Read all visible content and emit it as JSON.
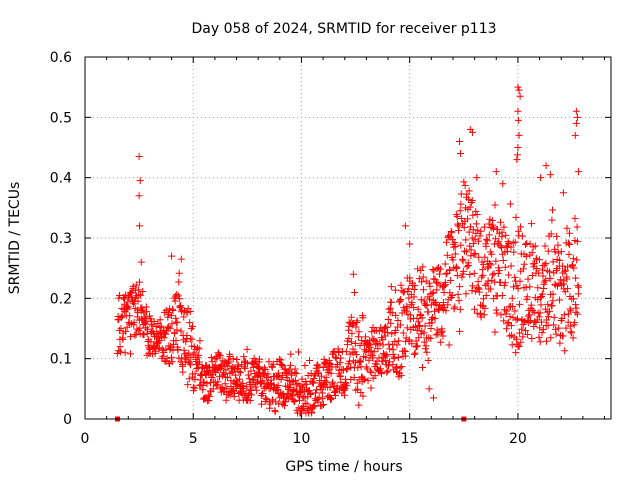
{
  "chart_data": {
    "type": "scatter",
    "title": "Day 058 of 2024, SRMTID for receiver p113",
    "xlabel": "GPS time / hours",
    "ylabel": "SRMTID / TECUs",
    "xlim": [
      0,
      24.3
    ],
    "ylim": [
      0,
      0.6
    ],
    "x_ticks": [
      0,
      5,
      10,
      15,
      20
    ],
    "x_tick_labels": [
      "0",
      "5",
      "10",
      "15",
      "20"
    ],
    "y_ticks": [
      0,
      0.1,
      0.2,
      0.3,
      0.4,
      0.5,
      0.6
    ],
    "y_tick_labels": [
      "0",
      "0.1",
      "0.2",
      "0.3",
      "0.4",
      "0.5",
      "0.6"
    ],
    "grid": true,
    "marker": "+",
    "color": "#ff0000",
    "series": [
      {
        "name": "SRMTID",
        "x_range": [
          1.5,
          22.8
        ],
        "envelope": {
          "x": [
            1.5,
            2.0,
            2.5,
            3.0,
            3.5,
            4.0,
            4.5,
            5.0,
            5.5,
            6.0,
            7.0,
            8.0,
            9.0,
            10.0,
            11.0,
            12.0,
            12.5,
            13.0,
            13.5,
            14.0,
            14.5,
            15.0,
            15.5,
            16.0,
            16.5,
            17.0,
            17.5,
            18.0,
            18.5,
            19.0,
            19.5,
            20.0,
            20.5,
            21.0,
            21.5,
            22.0,
            22.5,
            22.8
          ],
          "low": [
            0.08,
            0.09,
            0.09,
            0.1,
            0.1,
            0.09,
            0.07,
            0.04,
            0.03,
            0.03,
            0.02,
            0.02,
            0.01,
            0.01,
            0.01,
            0.02,
            0.02,
            0.02,
            0.06,
            0.08,
            0.07,
            0.08,
            0.08,
            0.09,
            0.1,
            0.12,
            0.13,
            0.18,
            0.16,
            0.14,
            0.12,
            0.12,
            0.12,
            0.11,
            0.12,
            0.11,
            0.12,
            0.14
          ],
          "high": [
            0.22,
            0.2,
            0.26,
            0.19,
            0.2,
            0.25,
            0.26,
            0.16,
            0.12,
            0.11,
            0.12,
            0.12,
            0.12,
            0.11,
            0.11,
            0.12,
            0.24,
            0.16,
            0.18,
            0.22,
            0.32,
            0.26,
            0.28,
            0.3,
            0.28,
            0.32,
            0.43,
            0.4,
            0.37,
            0.38,
            0.33,
            0.45,
            0.34,
            0.33,
            0.4,
            0.37,
            0.38,
            0.4
          ]
        },
        "spikes": [
          {
            "x": 2.5,
            "y": 0.435
          },
          {
            "x": 2.55,
            "y": 0.395
          },
          {
            "x": 2.5,
            "y": 0.37
          },
          {
            "x": 2.52,
            "y": 0.32
          },
          {
            "x": 2.6,
            "y": 0.26
          },
          {
            "x": 4.45,
            "y": 0.265
          },
          {
            "x": 4.0,
            "y": 0.27
          },
          {
            "x": 17.3,
            "y": 0.46
          },
          {
            "x": 17.35,
            "y": 0.44
          },
          {
            "x": 17.8,
            "y": 0.48
          },
          {
            "x": 17.9,
            "y": 0.475
          },
          {
            "x": 18.1,
            "y": 0.4
          },
          {
            "x": 19.0,
            "y": 0.41
          },
          {
            "x": 19.3,
            "y": 0.39
          },
          {
            "x": 20.0,
            "y": 0.55
          },
          {
            "x": 20.05,
            "y": 0.545
          },
          {
            "x": 20.1,
            "y": 0.535
          },
          {
            "x": 20.0,
            "y": 0.51
          },
          {
            "x": 20.02,
            "y": 0.495
          },
          {
            "x": 20.05,
            "y": 0.47
          },
          {
            "x": 20.0,
            "y": 0.45
          },
          {
            "x": 19.95,
            "y": 0.43
          },
          {
            "x": 19.9,
            "y": 0.11
          },
          {
            "x": 21.05,
            "y": 0.4
          },
          {
            "x": 21.3,
            "y": 0.42
          },
          {
            "x": 21.5,
            "y": 0.405
          },
          {
            "x": 22.7,
            "y": 0.51
          },
          {
            "x": 22.75,
            "y": 0.5
          },
          {
            "x": 22.7,
            "y": 0.49
          },
          {
            "x": 22.65,
            "y": 0.47
          },
          {
            "x": 22.8,
            "y": 0.41
          },
          {
            "x": 22.1,
            "y": 0.375
          },
          {
            "x": 15.0,
            "y": 0.29
          },
          {
            "x": 14.8,
            "y": 0.32
          },
          {
            "x": 12.4,
            "y": 0.24
          },
          {
            "x": 15.9,
            "y": 0.05
          },
          {
            "x": 16.1,
            "y": 0.035
          }
        ]
      }
    ],
    "zero_markers": [
      {
        "x": 1.5,
        "y": 0
      },
      {
        "x": 17.5,
        "y": 0
      }
    ]
  }
}
